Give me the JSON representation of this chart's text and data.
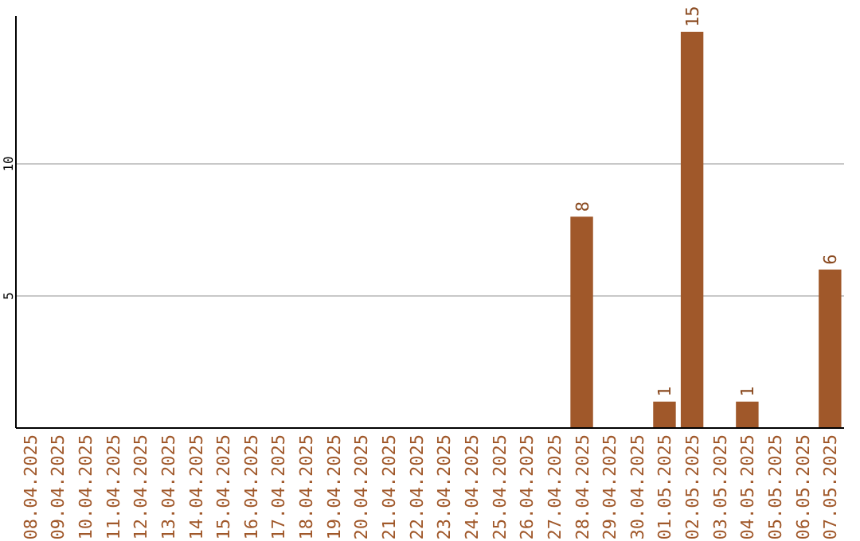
{
  "chart_data": {
    "type": "bar",
    "categories": [
      "08.04.2025",
      "09.04.2025",
      "10.04.2025",
      "11.04.2025",
      "12.04.2025",
      "13.04.2025",
      "14.04.2025",
      "15.04.2025",
      "16.04.2025",
      "17.04.2025",
      "18.04.2025",
      "19.04.2025",
      "20.04.2025",
      "21.04.2025",
      "22.04.2025",
      "23.04.2025",
      "24.04.2025",
      "25.04.2025",
      "26.04.2025",
      "27.04.2025",
      "28.04.2025",
      "29.04.2025",
      "30.04.2025",
      "01.05.2025",
      "02.05.2025",
      "03.05.2025",
      "04.05.2025",
      "05.05.2025",
      "06.05.2025",
      "07.05.2025"
    ],
    "values": [
      0,
      0,
      0,
      0,
      0,
      0,
      0,
      0,
      0,
      0,
      0,
      0,
      0,
      0,
      0,
      0,
      0,
      0,
      0,
      0,
      8,
      0,
      0,
      1,
      15,
      0,
      1,
      0,
      0,
      6
    ],
    "value_labels": [
      null,
      null,
      null,
      null,
      null,
      null,
      null,
      null,
      null,
      null,
      null,
      null,
      null,
      null,
      null,
      null,
      null,
      null,
      null,
      null,
      "8",
      null,
      null,
      "1",
      "15",
      null,
      "1",
      null,
      null,
      "6"
    ],
    "color": "#a0582a",
    "ylim": [
      0,
      15.6
    ],
    "yticks": [
      5,
      10
    ],
    "grid": "y"
  }
}
